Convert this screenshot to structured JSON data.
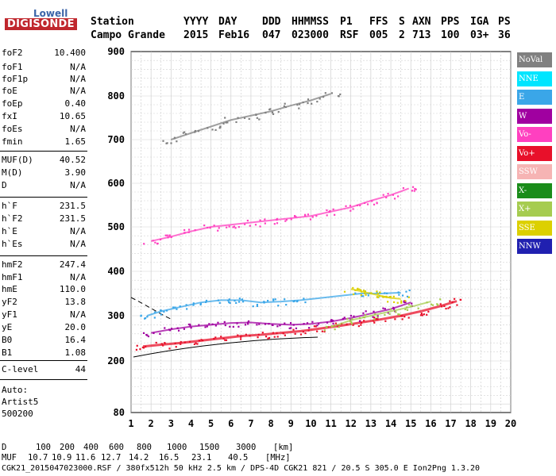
{
  "logo": {
    "line1": "Lowell",
    "line2": "DIGISONDE"
  },
  "header": {
    "row1": [
      "Station",
      "YYYY",
      "DAY",
      "DDD",
      "HHMMSS",
      "P1",
      "FFS",
      "S",
      "AXN",
      "PPS",
      "IGA",
      "PS"
    ],
    "row2": [
      "Campo Grande",
      "2015",
      "Feb16",
      "047",
      "023000",
      "RSF",
      "005",
      "2",
      "713",
      "100",
      "03+",
      "36"
    ]
  },
  "params": [
    {
      "name": "foF2",
      "value": "10.400"
    },
    {
      "name": "foF1",
      "value": "N/A"
    },
    {
      "name": "foF1p",
      "value": "N/A"
    },
    {
      "name": "foE",
      "value": "N/A"
    },
    {
      "name": "foEp",
      "value": "0.40"
    },
    {
      "name": "fxI",
      "value": "10.65"
    },
    {
      "name": "foEs",
      "value": "N/A"
    },
    {
      "name": "fmin",
      "value": "1.65"
    },
    {
      "name": "MUF(D)",
      "value": "40.52"
    },
    {
      "name": "M(D)",
      "value": "3.90"
    },
    {
      "name": "D",
      "value": "N/A"
    },
    {
      "name": "h`F",
      "value": "231.5"
    },
    {
      "name": "h`F2",
      "value": "231.5"
    },
    {
      "name": "h`E",
      "value": "N/A"
    },
    {
      "name": "h`Es",
      "value": "N/A"
    },
    {
      "name": "hmF2",
      "value": "247.4"
    },
    {
      "name": "hmF1",
      "value": "N/A"
    },
    {
      "name": "hmE",
      "value": "110.0"
    },
    {
      "name": "yF2",
      "value": "13.8"
    },
    {
      "name": "yF1",
      "value": "N/A"
    },
    {
      "name": "yE",
      "value": "20.0"
    },
    {
      "name": "B0",
      "value": "16.4"
    },
    {
      "name": "B1",
      "value": "1.08"
    },
    {
      "name": "C-level",
      "value": "44"
    }
  ],
  "auto": {
    "line1": "Auto:",
    "line2": "Artist5",
    "line3": "500200"
  },
  "legend": [
    {
      "label": "NoVal",
      "color": "#808080"
    },
    {
      "label": "NNE",
      "color": "#00e5ff"
    },
    {
      "label": "E",
      "color": "#3aa6e8"
    },
    {
      "label": "W",
      "color": "#a000a0"
    },
    {
      "label": "Vo-",
      "color": "#ff40c0"
    },
    {
      "label": "Vo+",
      "color": "#e8102a"
    },
    {
      "label": "SSW",
      "color": "#f6b4b4"
    },
    {
      "label": "X-",
      "color": "#1a8c1a"
    },
    {
      "label": "X+",
      "color": "#a6cc50"
    },
    {
      "label": "SSE",
      "color": "#dcd000"
    },
    {
      "label": "NNW",
      "color": "#2020b0"
    }
  ],
  "footer": {
    "d_label": "D",
    "d_values": [
      "100",
      "200",
      "400",
      "600",
      "800",
      "1000",
      "1500",
      "3000",
      "[km]"
    ],
    "muf_label": "MUF",
    "muf_values": [
      "10.7",
      "10.9",
      "11.6",
      "12.7",
      "14.2",
      "16.5",
      "23.1",
      "40.5",
      "[MHz]"
    ],
    "info": "CGK21_2015047023000.RSF / 380fx512h 50 kHz 2.5 km / DPS-4D CGK21 821 / 20.5 S 305.0 E Ion2Png 1.3.20"
  },
  "chart_data": {
    "type": "scatter",
    "xlim": [
      1,
      20
    ],
    "ylim": [
      80,
      900
    ],
    "x_ticks": [
      "1",
      "2",
      "3",
      "4",
      "5",
      "6",
      "7",
      "8",
      "9",
      "10",
      "11",
      "12",
      "13",
      "14",
      "15",
      "16",
      "17",
      "18",
      "19",
      "20"
    ],
    "y_ticks": [
      "80",
      "200",
      "300",
      "400",
      "500",
      "600",
      "700",
      "800",
      "900"
    ],
    "grid": true,
    "series": [
      {
        "name": "Vo+",
        "color": "#e8102a",
        "points": [
          [
            1.6,
            232
          ],
          [
            2.5,
            236
          ],
          [
            3.5,
            240
          ],
          [
            4.5,
            245
          ],
          [
            5.5,
            250
          ],
          [
            6.5,
            255
          ],
          [
            7.5,
            258
          ],
          [
            8.5,
            262
          ],
          [
            9.5,
            266
          ],
          [
            10.5,
            272
          ],
          [
            11.5,
            278
          ],
          [
            12.5,
            285
          ],
          [
            13.5,
            292
          ],
          [
            14.5,
            300
          ],
          [
            15.5,
            310
          ],
          [
            16.5,
            322
          ],
          [
            17.3,
            333
          ]
        ]
      },
      {
        "name": "W",
        "color": "#a000a0",
        "points": [
          [
            2,
            262
          ],
          [
            3,
            270
          ],
          [
            4,
            276
          ],
          [
            5,
            280
          ],
          [
            6,
            284
          ],
          [
            7,
            285
          ],
          [
            8,
            282
          ],
          [
            9,
            280
          ],
          [
            10,
            282
          ],
          [
            11,
            287
          ],
          [
            12,
            295
          ],
          [
            13,
            305
          ],
          [
            14,
            315
          ],
          [
            15,
            330
          ]
        ]
      },
      {
        "name": "E",
        "color": "#3aa6e8",
        "points": [
          [
            1.8,
            300
          ],
          [
            2.5,
            310
          ],
          [
            3.5,
            320
          ],
          [
            4.5,
            330
          ],
          [
            5.5,
            335
          ],
          [
            6.5,
            335
          ],
          [
            7.5,
            330
          ],
          [
            8.5,
            332
          ],
          [
            9.5,
            335
          ],
          [
            12.5,
            350
          ],
          [
            13.5,
            350
          ],
          [
            14.5,
            352
          ]
        ]
      },
      {
        "name": "Vo-",
        "color": "#ff40c0",
        "points": [
          [
            2,
            468
          ],
          [
            3,
            478
          ],
          [
            4,
            490
          ],
          [
            5,
            500
          ],
          [
            6,
            505
          ],
          [
            7,
            510
          ],
          [
            8,
            515
          ],
          [
            9,
            520
          ],
          [
            10,
            525
          ],
          [
            11,
            535
          ],
          [
            12,
            545
          ],
          [
            13,
            560
          ],
          [
            14,
            573
          ],
          [
            14.9,
            588
          ]
        ]
      },
      {
        "name": "SSE",
        "color": "#dcd000",
        "points": [
          [
            12,
            360
          ],
          [
            12.5,
            355
          ],
          [
            13,
            350
          ],
          [
            13.5,
            345
          ],
          [
            14,
            340
          ],
          [
            14.5,
            338
          ]
        ]
      },
      {
        "name": "X+",
        "color": "#a6cc50",
        "points": [
          [
            11,
            275
          ],
          [
            12,
            290
          ],
          [
            13,
            300
          ],
          [
            14,
            310
          ],
          [
            15,
            320
          ],
          [
            16,
            332
          ]
        ]
      },
      {
        "name": "NoVal",
        "color": "#808080",
        "points": [
          [
            3,
            700
          ],
          [
            4,
            715
          ],
          [
            5,
            730
          ],
          [
            6,
            745
          ],
          [
            7,
            755
          ],
          [
            8,
            765
          ],
          [
            9,
            778
          ],
          [
            10,
            790
          ],
          [
            11,
            805
          ]
        ]
      }
    ]
  }
}
